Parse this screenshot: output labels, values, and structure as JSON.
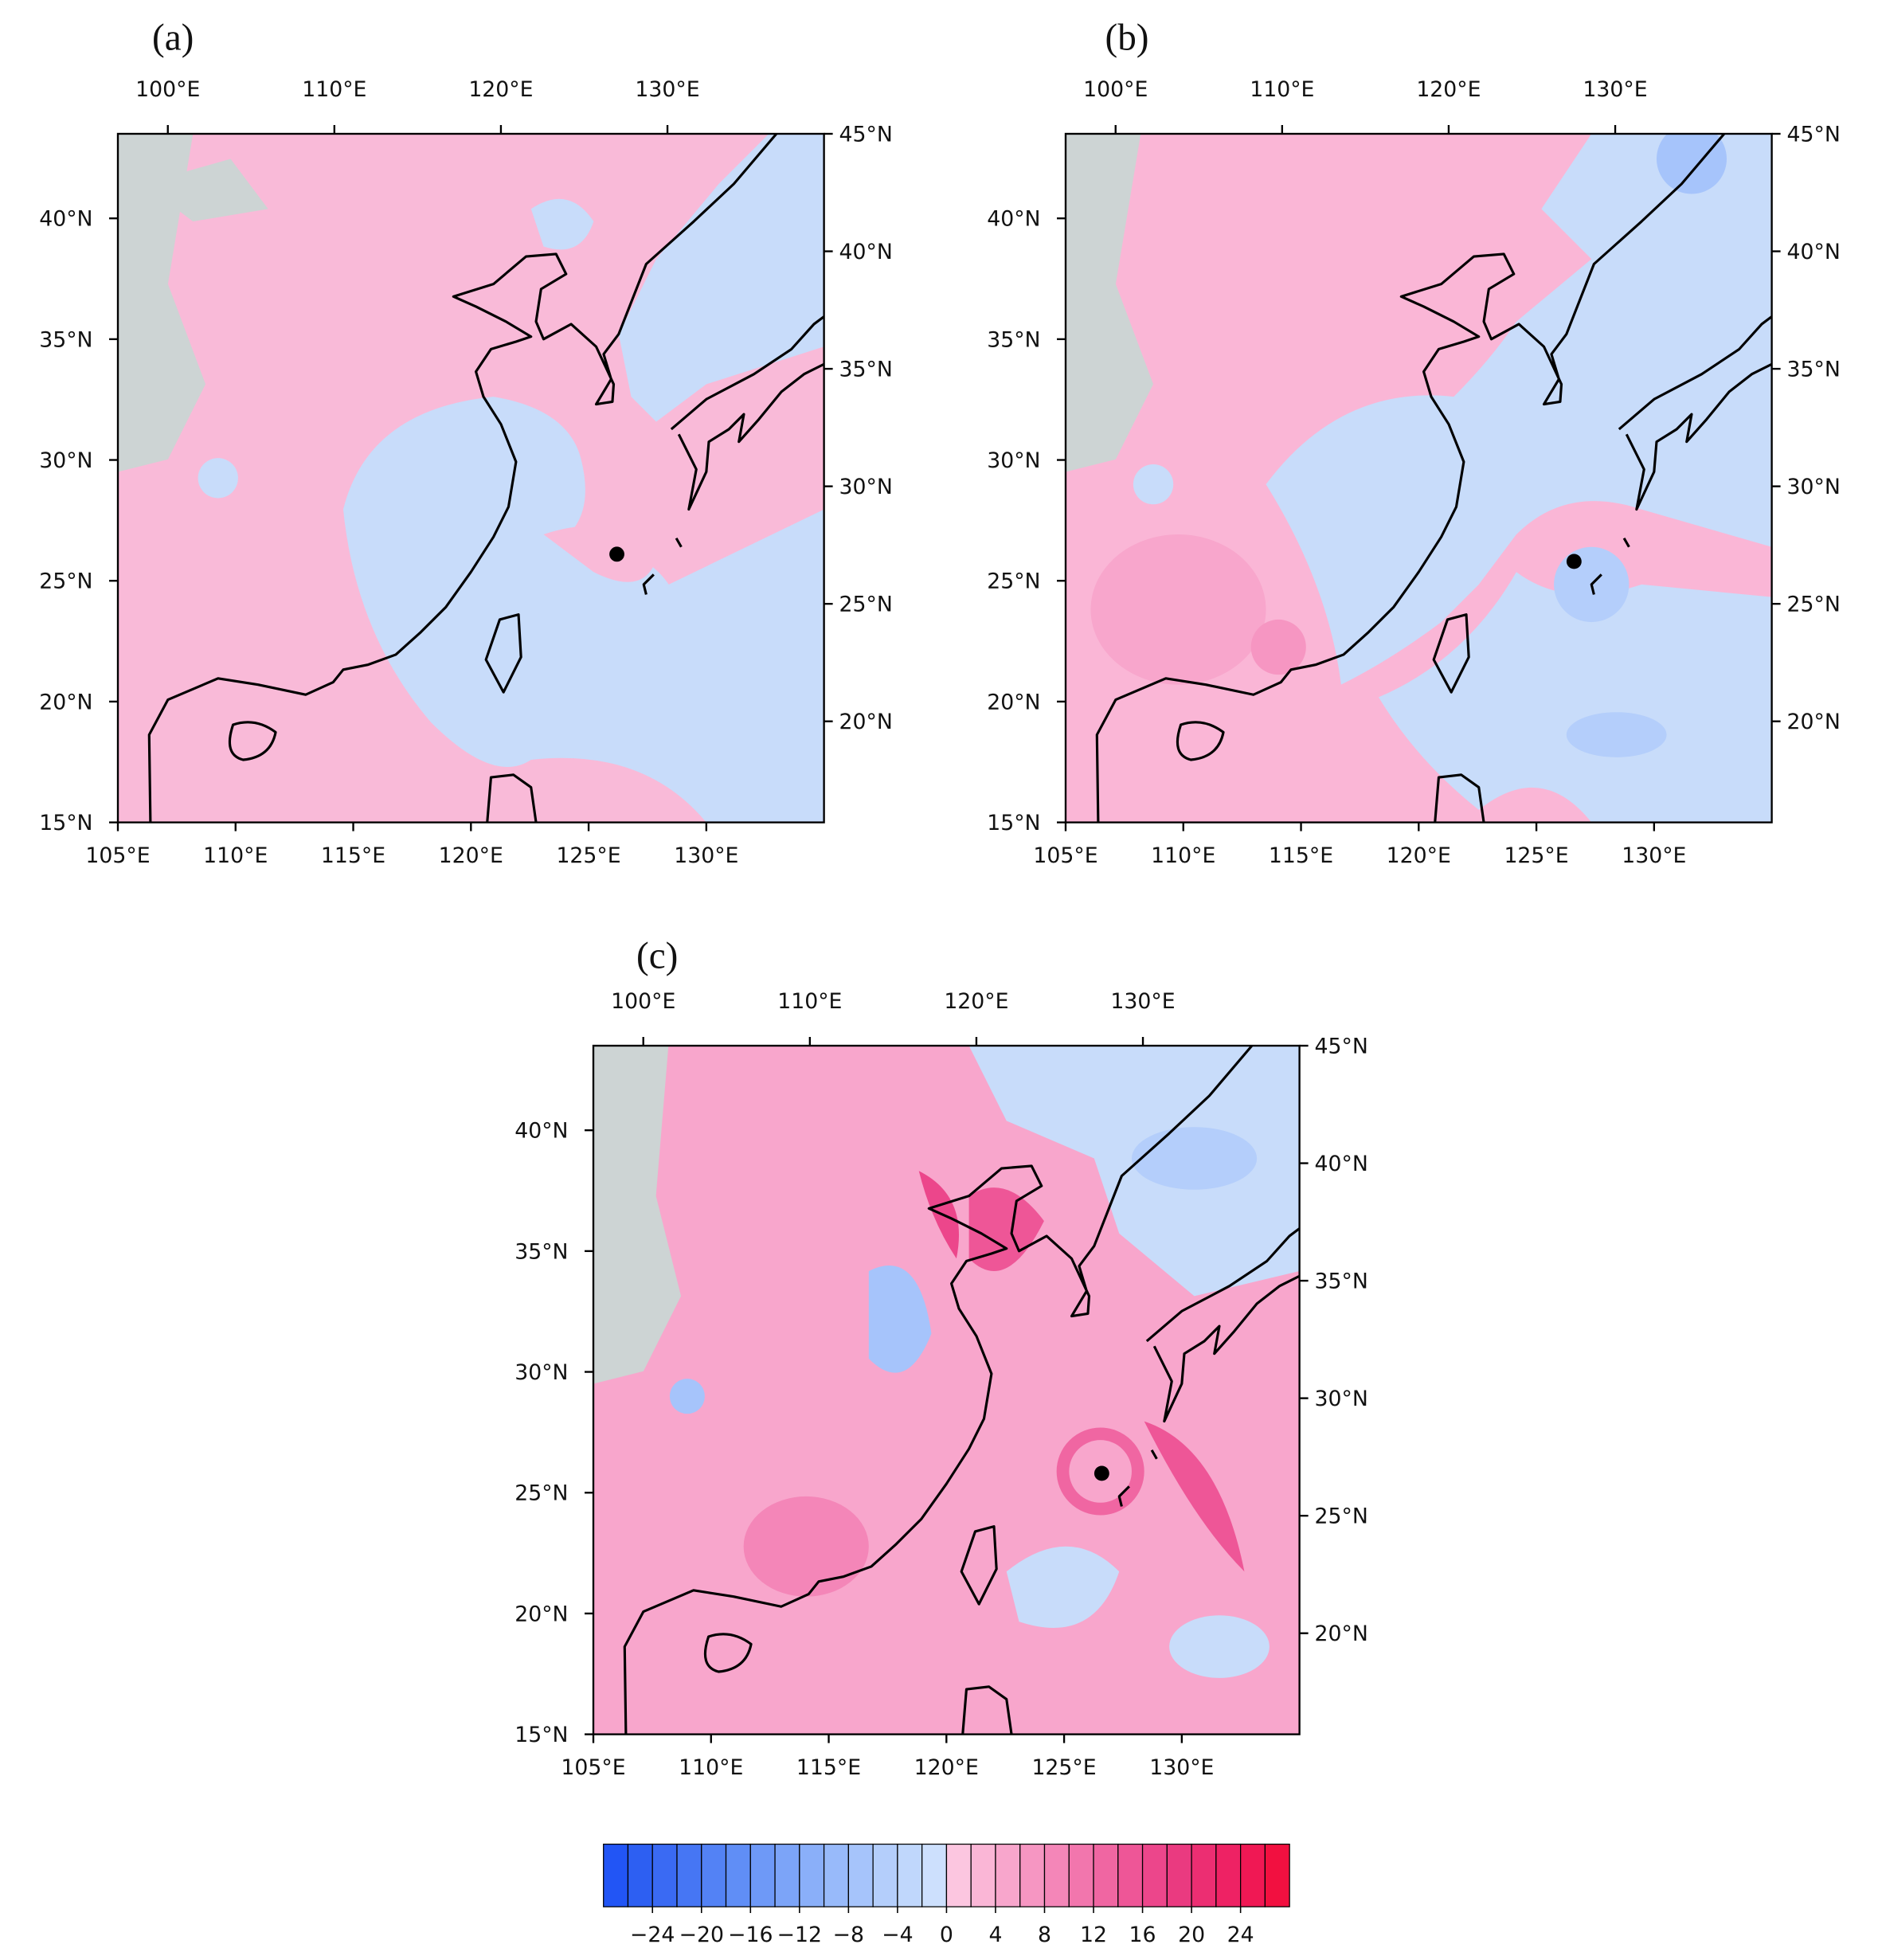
{
  "chart_data": {
    "type": "map-panels",
    "axes": {
      "bottom": {
        "lim": [
          105,
          135
        ],
        "ticks": [
          {
            "value": 105,
            "label": "105°E"
          },
          {
            "value": 110,
            "label": "110°E"
          },
          {
            "value": 115,
            "label": "115°E"
          },
          {
            "value": 120,
            "label": "120°E"
          },
          {
            "value": 125,
            "label": "125°E"
          },
          {
            "value": 130,
            "label": "130°E"
          }
        ]
      },
      "left": {
        "lim": [
          15,
          43.5
        ],
        "ticks": [
          {
            "value": 15,
            "label": "15°N"
          },
          {
            "value": 20,
            "label": "20°N"
          },
          {
            "value": 25,
            "label": "25°N"
          },
          {
            "value": 30,
            "label": "30°N"
          },
          {
            "value": 35,
            "label": "35°N"
          },
          {
            "value": 40,
            "label": "40°N"
          }
        ]
      },
      "top": {
        "lim": [
          97,
          139.4
        ],
        "ticks": [
          {
            "value": 100,
            "label": "100°E"
          },
          {
            "value": 110,
            "label": "110°E"
          },
          {
            "value": 120,
            "label": "120°E"
          },
          {
            "value": 130,
            "label": "130°E"
          }
        ]
      },
      "right": {
        "lim": [
          15.7,
          45
        ],
        "ticks": [
          {
            "value": 20,
            "label": "20°N"
          },
          {
            "value": 25,
            "label": "25°N"
          },
          {
            "value": 30,
            "label": "30°N"
          },
          {
            "value": 35,
            "label": "35°N"
          },
          {
            "value": 40,
            "label": "40°N"
          },
          {
            "value": 45,
            "label": "45°N"
          }
        ]
      }
    },
    "panels": [
      {
        "label": "(a)",
        "storm_center": {
          "lon": 126.2,
          "lat": 26.1
        }
      },
      {
        "label": "(b)",
        "storm_center": {
          "lon": 126.6,
          "lat": 25.8
        }
      },
      {
        "label": "(c)",
        "storm_center": {
          "lon": 126.6,
          "lat": 25.8
        }
      }
    ],
    "colorbar": {
      "lim": [
        -28,
        28
      ],
      "ticks": [
        {
          "value": -24,
          "label": "−24"
        },
        {
          "value": -20,
          "label": "−20"
        },
        {
          "value": -16,
          "label": "−16"
        },
        {
          "value": -12,
          "label": "−12"
        },
        {
          "value": -8,
          "label": "−8"
        },
        {
          "value": -4,
          "label": "−4"
        },
        0,
        4,
        8,
        12,
        16,
        20,
        24
      ],
      "colors": [
        "#2255f5",
        "#2d5ff2",
        "#3a6af3",
        "#4676f4",
        "#5382f5",
        "#608ef6",
        "#6e99f7",
        "#7ca4f8",
        "#8aaff9",
        "#98bafa",
        "#a6c4fb",
        "#b4cefb",
        "#c0d7fc",
        "#cde0fd",
        "#fcc6e0",
        "#fab6d6",
        "#f8a6cc",
        "#f696c2",
        "#f486b8",
        "#f276ad",
        "#f066a2",
        "#ee5697",
        "#ec468b",
        "#ea3a80",
        "#ec2e72",
        "#ee2264",
        "#f01854",
        "#f21040"
      ]
    }
  }
}
